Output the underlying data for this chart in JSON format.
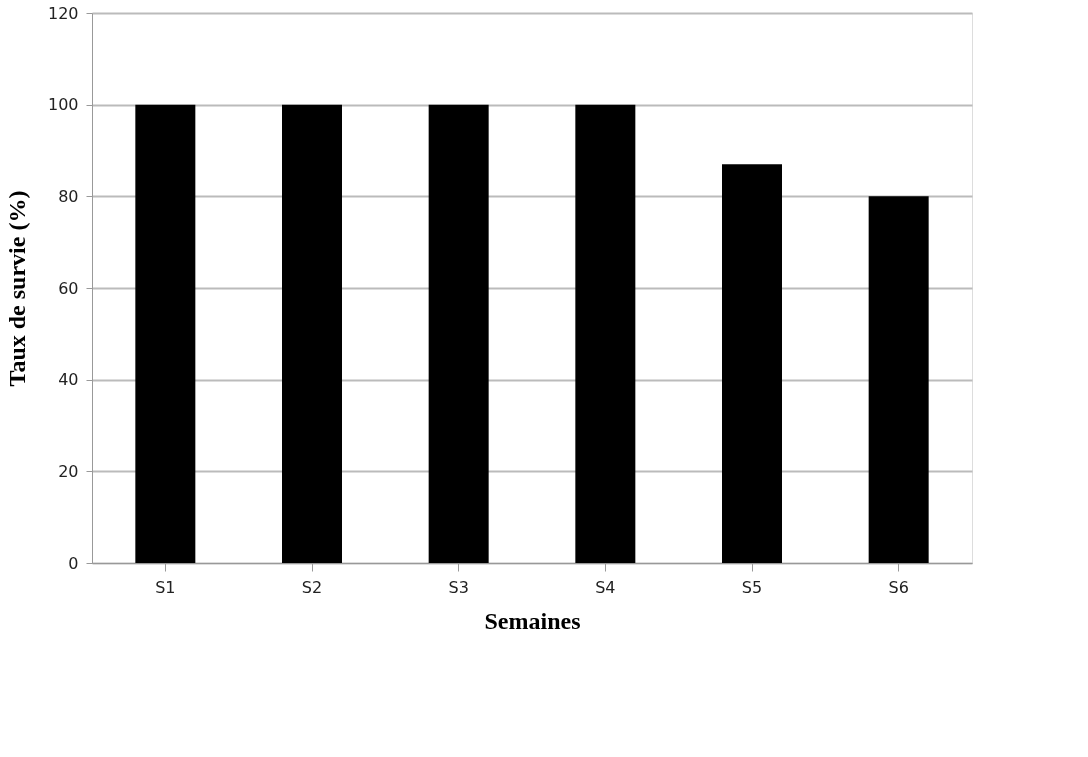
{
  "chart_data": {
    "type": "bar",
    "xlabel": "Semaines",
    "ylabel": "Taux de survie (%)",
    "categories": [
      "S1",
      "S2",
      "S3",
      "S4",
      "S5",
      "S6"
    ],
    "values": [
      100,
      100,
      100,
      100,
      87,
      80
    ],
    "color": "#000000",
    "ylim": [
      0,
      120
    ],
    "yticks": [
      0,
      20,
      40,
      60,
      80,
      100,
      120
    ],
    "grid": "y"
  }
}
